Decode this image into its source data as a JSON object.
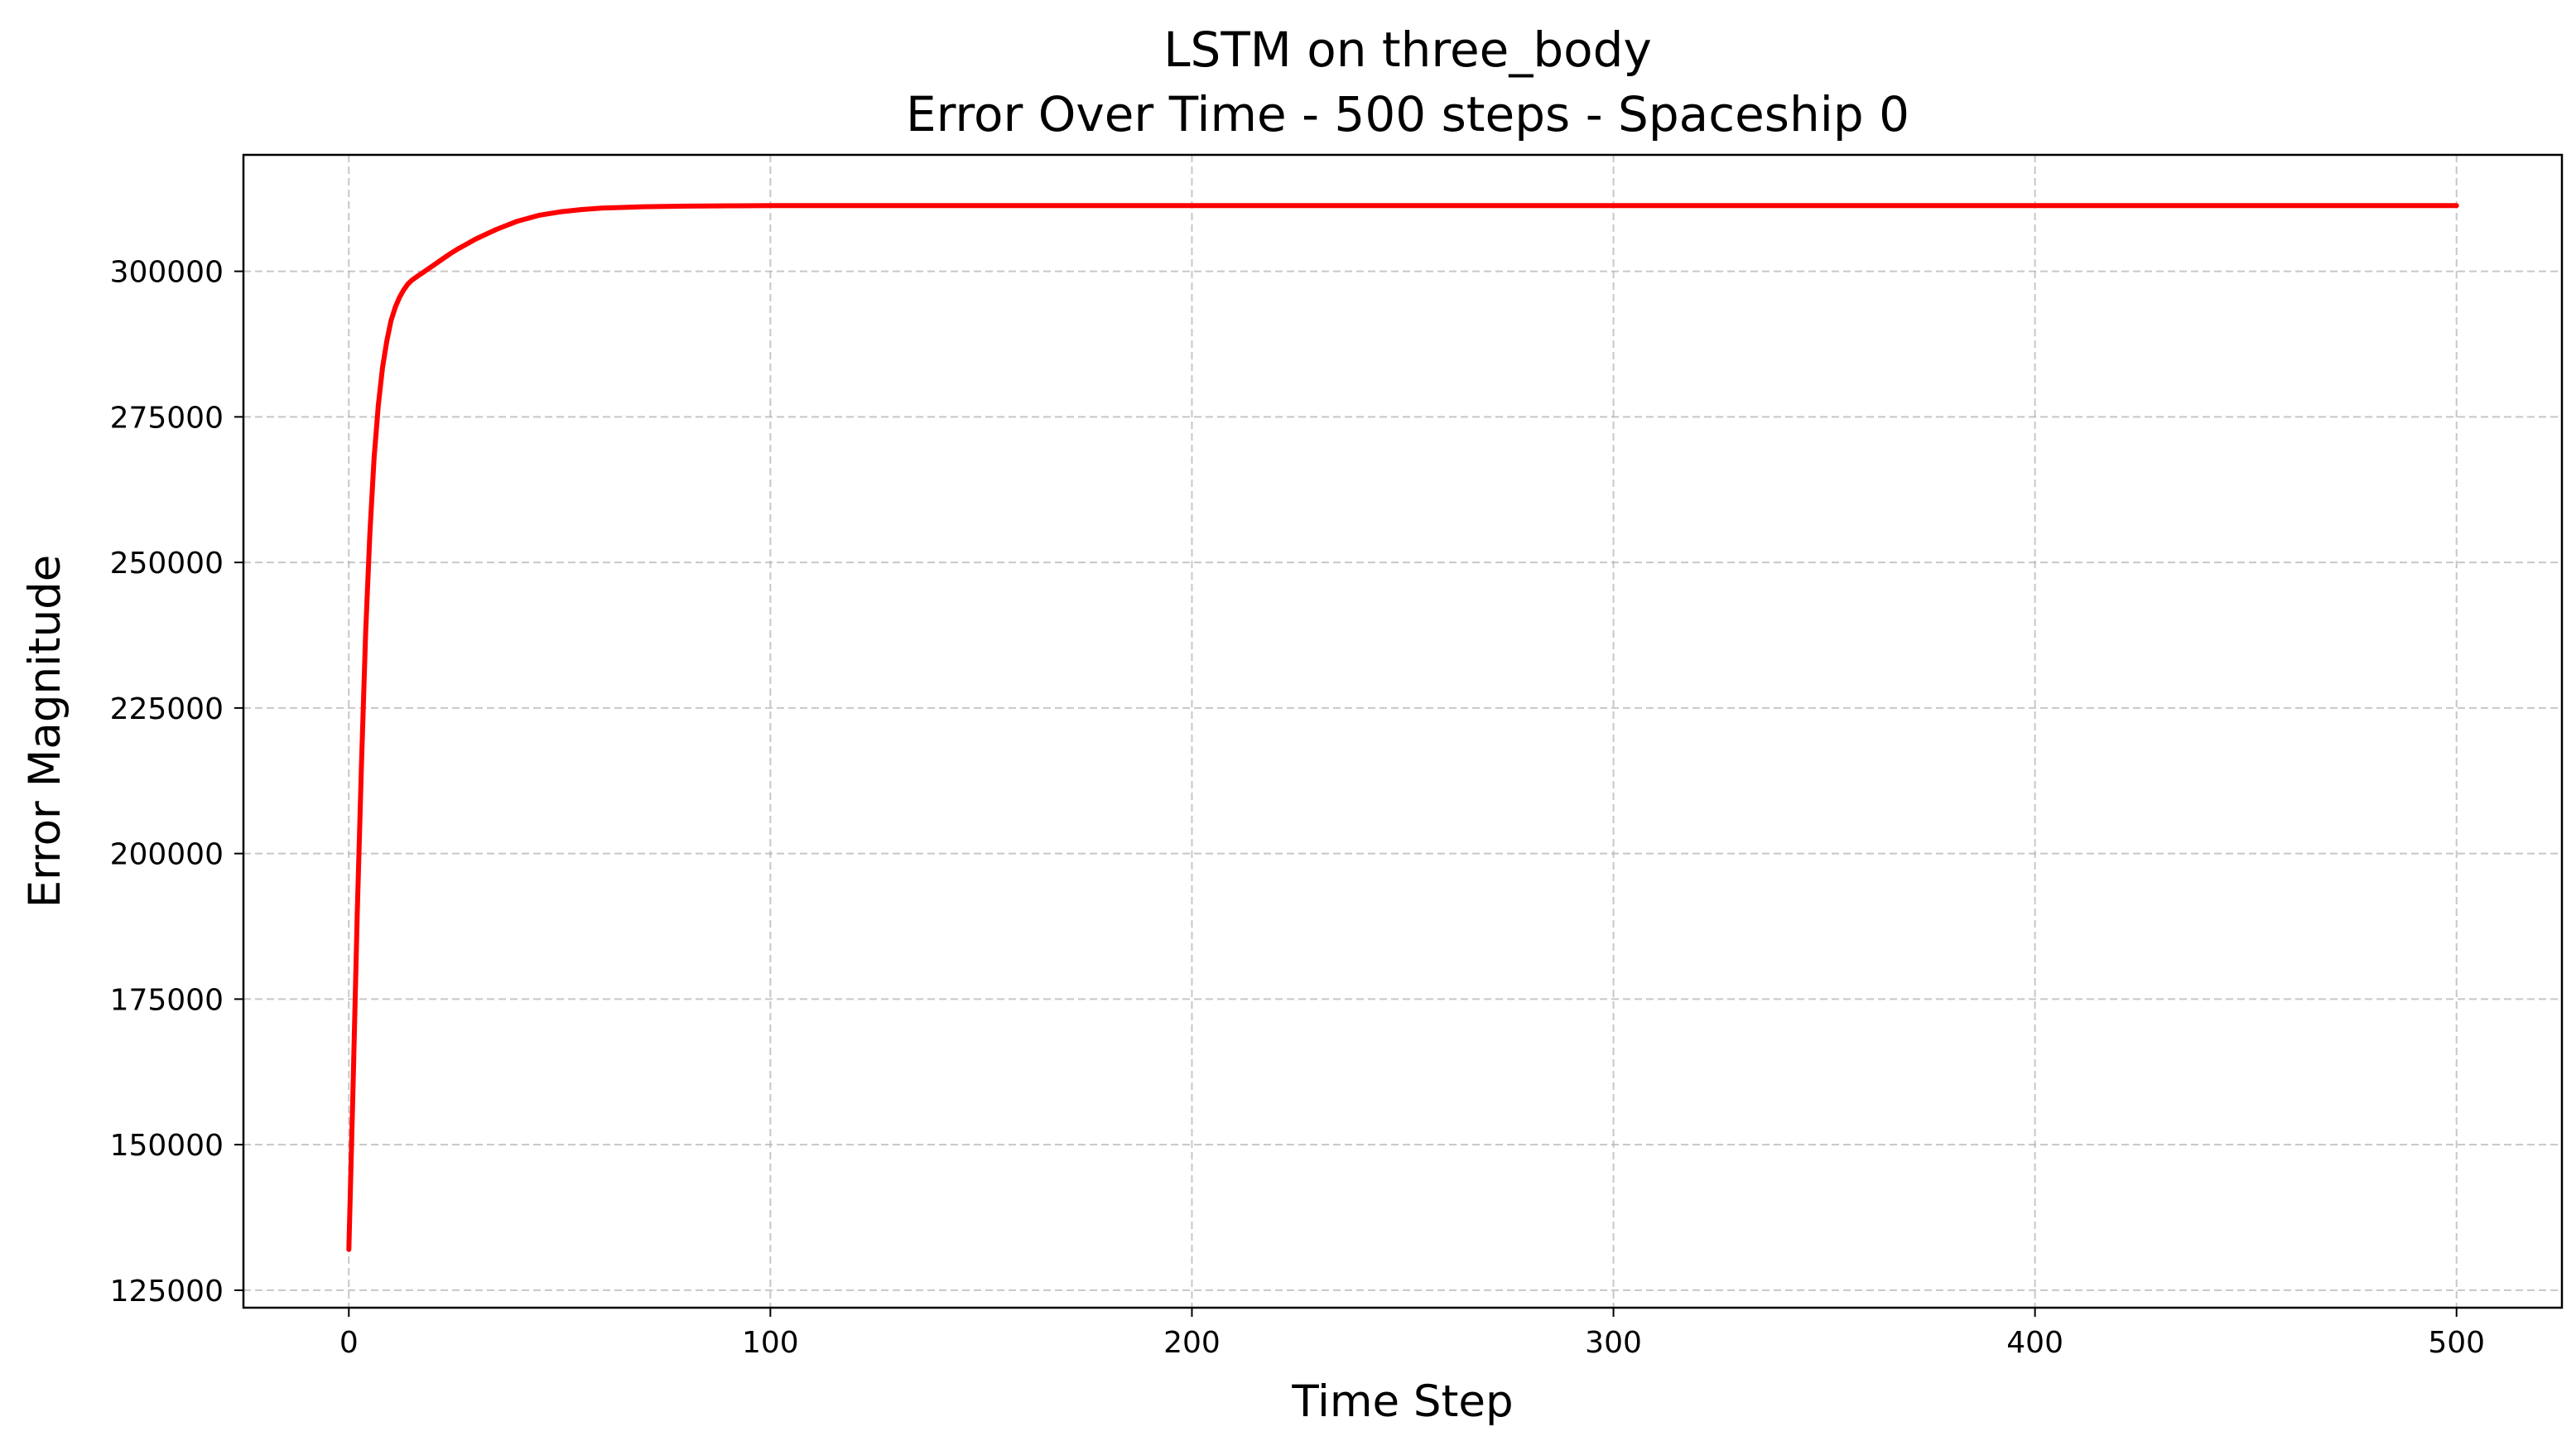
{
  "chart_data": {
    "type": "line",
    "title": "LSTM on three_body",
    "subtitle": "Error Over Time - 500 steps - Spaceship 0",
    "xlabel": "Time Step",
    "ylabel": "Error Magnitude",
    "xlim": [
      -25,
      525
    ],
    "ylim": [
      122000,
      320000
    ],
    "x_ticks": [
      0,
      100,
      200,
      300,
      400,
      500
    ],
    "y_ticks": [
      125000,
      150000,
      175000,
      200000,
      225000,
      250000,
      275000,
      300000
    ],
    "grid": true,
    "legend": "none",
    "line_color": "#ff0000",
    "series": [
      {
        "x": [
          0,
          1,
          2,
          3,
          4,
          5,
          6,
          7,
          8,
          9,
          10,
          11,
          12,
          13,
          14,
          15,
          16,
          17,
          18,
          19,
          20,
          22,
          24,
          26,
          28,
          30,
          35,
          40,
          45,
          50,
          55,
          60,
          70,
          80,
          90,
          100,
          150,
          200,
          250,
          300,
          350,
          400,
          450,
          500
        ],
        "y": [
          132000,
          160000,
          190000,
          215000,
          238000,
          255000,
          268000,
          277000,
          283500,
          288000,
          291500,
          293800,
          295500,
          296800,
          297800,
          298500,
          299000,
          299500,
          300000,
          300500,
          301000,
          302000,
          303000,
          303900,
          304700,
          305500,
          307200,
          308600,
          309600,
          310200,
          310600,
          310850,
          311100,
          311200,
          311250,
          311280,
          311300,
          311300,
          311300,
          311300,
          311300,
          311300,
          311300,
          311300
        ]
      }
    ]
  }
}
